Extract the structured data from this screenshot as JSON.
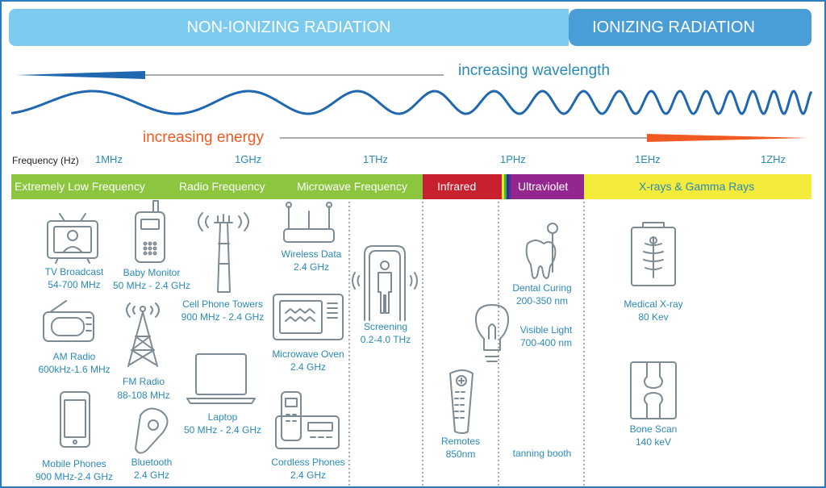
{
  "header": {
    "non_ionizing": "NON-IONIZING RADIATION",
    "ionizing": "IONIZING RADIATION"
  },
  "arrows": {
    "wavelength": "increasing wavelength",
    "energy": "increasing energy"
  },
  "frequency": {
    "axis_label": "Frequency (Hz)",
    "ticks": [
      "1MHz",
      "1GHz",
      "1THz",
      "1PHz",
      "1EHz",
      "1ZHz"
    ]
  },
  "bands": {
    "elf": "Extremely Low Frequency",
    "radio": "Radio Frequency",
    "microwave": "Microwave Frequency",
    "infrared": "Infrared",
    "ultraviolet": "Ultraviolet",
    "xray": "X-rays & Gamma Rays"
  },
  "items": {
    "tv": {
      "name": "TV Broadcast",
      "freq": "54-700 MHz"
    },
    "am": {
      "name": "AM Radio",
      "freq": "600kHz-1.6 MHz"
    },
    "mobile": {
      "name": "Mobile Phones",
      "freq": "900 MHz-2.4 GHz"
    },
    "baby": {
      "name": "Baby Monitor",
      "freq": "50 MHz - 2.4 GHz"
    },
    "fm": {
      "name": "FM Radio",
      "freq": "88-108 MHz"
    },
    "bluetooth": {
      "name": "Bluetooth",
      "freq": "2.4 GHz"
    },
    "cell": {
      "name": "Cell Phone Towers",
      "freq": "900 MHz - 2.4 GHz"
    },
    "laptop": {
      "name": "Laptop",
      "freq": "50 MHz - 2.4 GHz"
    },
    "wireless": {
      "name": "Wireless Data",
      "freq": "2.4 GHz"
    },
    "microwave_oven": {
      "name": "Microwave Oven",
      "freq": "2.4 GHz"
    },
    "cordless": {
      "name": "Cordless Phones",
      "freq": "2.4 GHz"
    },
    "screening": {
      "name": "Screening",
      "freq": "0.2-4.0 THz"
    },
    "remotes": {
      "name": "Remotes",
      "freq": "850nm"
    },
    "dental": {
      "name": "Dental Curing",
      "freq": "200-350 nm"
    },
    "visible": {
      "name": "Visible Light",
      "freq": "700-400 nm"
    },
    "tanning": {
      "name": "tanning booth"
    },
    "xray_med": {
      "name": "Medical X-ray",
      "freq": "80 Kev"
    },
    "bone": {
      "name": "Bone Scan",
      "freq": "140 keV"
    }
  },
  "colors": {
    "header_light": "#7ccbef",
    "header_dark": "#4a9ed8",
    "wave": "#1f67b1",
    "energy": "#f05a22",
    "green": "#8cc63f",
    "infrared": "#c8202f",
    "ultraviolet": "#93278f",
    "yellow": "#f4eb3a",
    "icon": "#7d8b95",
    "text": "#2a8ab8"
  }
}
